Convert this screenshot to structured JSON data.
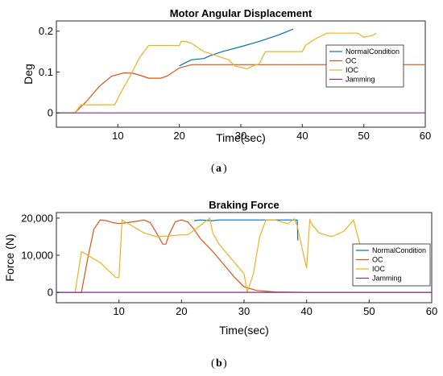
{
  "chart_data": [
    {
      "type": "line",
      "title": "Motor Angular Displacement",
      "xlabel": "Time(sec)",
      "ylabel": "Deg",
      "xlim": [
        0,
        60
      ],
      "ylim": [
        -0.035,
        0.225
      ],
      "xticks": [
        10,
        20,
        30,
        40,
        50,
        60
      ],
      "xtick_labels": [
        "10",
        "20",
        "30",
        "40",
        "50",
        "60"
      ],
      "yticks": [
        0,
        0.1,
        0.2
      ],
      "ytick_labels": [
        "0",
        "0.1",
        "0.2"
      ],
      "grid": false,
      "legend_position": "right",
      "caption_label": "a",
      "series": [
        {
          "name": "NormalCondition",
          "color": "#0072BD",
          "points": [
            [
              20,
              0.115
            ],
            [
              21,
              0.123
            ],
            [
              22,
              0.13
            ],
            [
              24,
              0.133
            ],
            [
              25,
              0.14
            ],
            [
              27,
              0.15
            ],
            [
              30,
              0.162
            ],
            [
              33,
              0.175
            ],
            [
              36,
              0.19
            ],
            [
              38.5,
              0.205
            ]
          ]
        },
        {
          "name": "OC",
          "color": "#D95319",
          "points": [
            [
              0,
              0
            ],
            [
              3,
              0
            ],
            [
              5,
              0.03
            ],
            [
              7,
              0.065
            ],
            [
              9,
              0.09
            ],
            [
              11,
              0.098
            ],
            [
              12.5,
              0.097
            ],
            [
              14,
              0.09
            ],
            [
              15,
              0.085
            ],
            [
              17,
              0.085
            ],
            [
              18,
              0.09
            ],
            [
              20,
              0.11
            ],
            [
              22,
              0.118
            ],
            [
              30,
              0.118
            ],
            [
              40,
              0.118
            ],
            [
              50,
              0.118
            ],
            [
              60,
              0.118
            ]
          ]
        },
        {
          "name": "IOC",
          "color": "#EDB120",
          "points": [
            [
              0,
              0
            ],
            [
              3,
              0
            ],
            [
              4,
              0.02
            ],
            [
              9.5,
              0.02
            ],
            [
              10.5,
              0.05
            ],
            [
              12,
              0.09
            ],
            [
              13.5,
              0.135
            ],
            [
              15,
              0.165
            ],
            [
              20,
              0.165
            ],
            [
              20.3,
              0.175
            ],
            [
              21,
              0.175
            ],
            [
              22,
              0.17
            ],
            [
              24,
              0.15
            ],
            [
              26,
              0.14
            ],
            [
              28,
              0.13
            ],
            [
              29,
              0.115
            ],
            [
              31,
              0.108
            ],
            [
              32,
              0.115
            ],
            [
              33,
              0.12
            ],
            [
              34,
              0.15
            ],
            [
              40,
              0.15
            ],
            [
              40.5,
              0.165
            ],
            [
              42,
              0.18
            ],
            [
              44,
              0.195
            ],
            [
              49,
              0.195
            ],
            [
              50,
              0.185
            ],
            [
              51.5,
              0.19
            ],
            [
              52,
              0.195
            ]
          ]
        },
        {
          "name": "Jamming",
          "color": "#7E2F8E",
          "points": [
            [
              0,
              0
            ],
            [
              60,
              0
            ]
          ]
        }
      ]
    },
    {
      "type": "line",
      "title": "Braking Force",
      "xlabel": "Time(sec)",
      "ylabel": "Force (N)",
      "xlim": [
        0,
        60
      ],
      "ylim": [
        -2800,
        21500
      ],
      "xticks": [
        10,
        20,
        30,
        40,
        50,
        60
      ],
      "xtick_labels": [
        "10",
        "20",
        "30",
        "40",
        "50",
        "60"
      ],
      "yticks": [
        0,
        10000,
        20000
      ],
      "ytick_labels": [
        "0",
        "10,000",
        "20,000"
      ],
      "grid": false,
      "legend_position": "right",
      "caption_label": "b",
      "series": [
        {
          "name": "NormalCondition",
          "color": "#0072BD",
          "points": [
            [
              22,
              19300
            ],
            [
              23,
              19500
            ],
            [
              25,
              19300
            ],
            [
              26,
              19500
            ],
            [
              38.5,
              19500
            ],
            [
              38.6,
              14000
            ]
          ]
        },
        {
          "name": "OC",
          "color": "#D95319",
          "points": [
            [
              0,
              0
            ],
            [
              4,
              0
            ],
            [
              5,
              9000
            ],
            [
              6,
              17000
            ],
            [
              7,
              19500
            ],
            [
              8,
              19300
            ],
            [
              9,
              18800
            ],
            [
              10,
              18500
            ],
            [
              11,
              18700
            ],
            [
              13,
              19200
            ],
            [
              14,
              19500
            ],
            [
              15,
              18800
            ],
            [
              16,
              16000
            ],
            [
              17,
              13000
            ],
            [
              17.5,
              13000
            ],
            [
              18,
              15500
            ],
            [
              19,
              19000
            ],
            [
              20,
              19500
            ],
            [
              21,
              19000
            ],
            [
              22,
              17000
            ],
            [
              23,
              14500
            ],
            [
              25,
              11000
            ],
            [
              27,
              7000
            ],
            [
              28.5,
              4000
            ],
            [
              30,
              1500
            ],
            [
              32,
              500
            ],
            [
              35,
              100
            ],
            [
              40,
              0
            ],
            [
              60,
              0
            ]
          ]
        },
        {
          "name": "IOC",
          "color": "#EDB120",
          "points": [
            [
              3,
              0
            ],
            [
              4,
              11000
            ],
            [
              7,
              8000
            ],
            [
              9.5,
              4000
            ],
            [
              10,
              4000
            ],
            [
              10.5,
              19500
            ],
            [
              11,
              19000
            ],
            [
              12,
              18000
            ],
            [
              14,
              16000
            ],
            [
              16,
              15000
            ],
            [
              18,
              15200
            ],
            [
              20,
              15500
            ],
            [
              21,
              15500
            ],
            [
              23,
              18000
            ],
            [
              24.5,
              20000
            ],
            [
              25,
              16000
            ],
            [
              26,
              13000
            ],
            [
              28,
              9000
            ],
            [
              30,
              5000
            ],
            [
              30.5,
              0
            ],
            [
              31.5,
              5000
            ],
            [
              32.5,
              15000
            ],
            [
              33.5,
              19500
            ],
            [
              35,
              19500
            ],
            [
              37,
              18500
            ],
            [
              38,
              19800
            ],
            [
              38.5,
              18000
            ],
            [
              39,
              14000
            ],
            [
              40,
              6500
            ],
            [
              40.5,
              19500
            ],
            [
              41,
              18000
            ],
            [
              42,
              16000
            ],
            [
              44,
              15000
            ],
            [
              46,
              16500
            ],
            [
              47.5,
              19500
            ],
            [
              48.5,
              13000
            ],
            [
              50,
              5000
            ]
          ]
        },
        {
          "name": "Jamming",
          "color": "#7E2F8E",
          "points": [
            [
              0,
              0
            ],
            [
              60,
              0
            ]
          ]
        }
      ]
    }
  ]
}
